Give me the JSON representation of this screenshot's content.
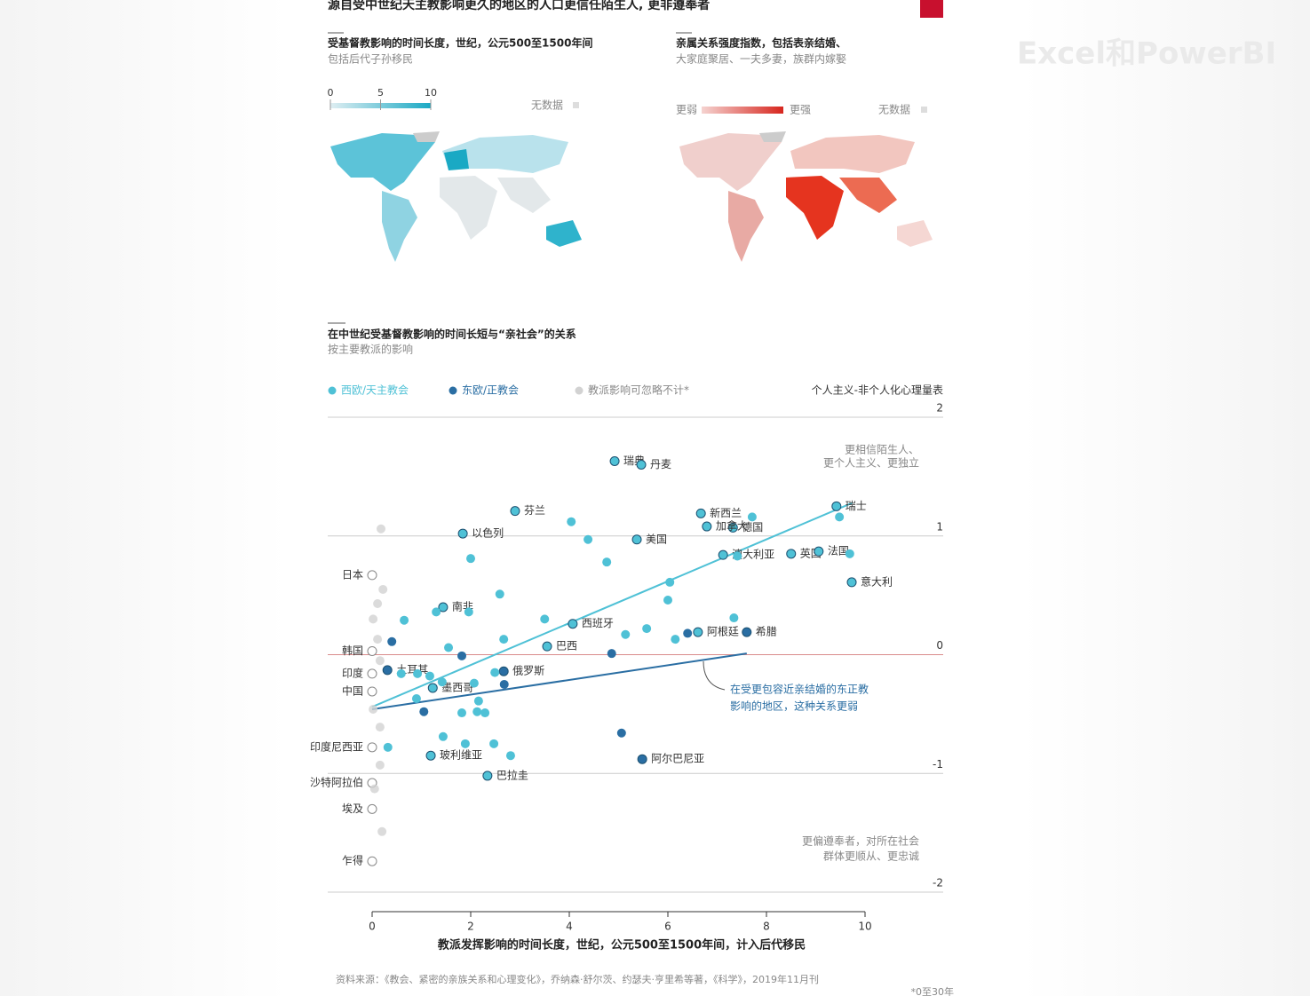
{
  "title": "源自受中世纪天主教影响更久的地区的人口更信任陌生人, 更非遵奉者",
  "watermark": "Excel和PowerBI",
  "map_left": {
    "title": "受基督教影响的时间长度，世纪，公元500至1500年间",
    "subtitle": "包括后代子孙移民",
    "legend_ticks": [
      0,
      5,
      10
    ],
    "no_data": "无数据"
  },
  "map_right": {
    "title_lines": [
      "亲属关系强度指数，包括表亲结婚、",
      "大家庭聚居、一夫多妻，族群内嫁娶"
    ],
    "weaker": "更弱",
    "stronger": "更强",
    "no_data": "无数据"
  },
  "chart_data": {
    "type": "scatter",
    "title": "在中世纪受基督教影响的时间长短与“亲社会”的关系",
    "subtitle": "按主要教派的影响",
    "y_label": "个人主义-非个人化心理量表",
    "x_label": "教派发挥影响的时间长度，世纪，公元500至1500年间，计入后代移民",
    "xlim": [
      0,
      10
    ],
    "xticks": [
      0,
      2,
      4,
      6,
      8,
      10
    ],
    "ylim": [
      -2,
      2
    ],
    "yticks": [
      -2,
      -1,
      0,
      1,
      2
    ],
    "top_note": [
      "更相信陌生人、",
      "更个人主义、更独立"
    ],
    "bottom_note": [
      "更偏遵奉者，对所在社会",
      "群体更顺从、更忠诚"
    ],
    "callout": [
      "在受更包容近亲结婚的东正教",
      "影响的地区，这种关系更弱"
    ],
    "series": [
      {
        "name": "西欧/天主教会",
        "color": "#4fc1d6",
        "x": [
          4.92,
          5.46,
          2.9,
          1.84,
          5.37,
          6.67,
          7.32,
          9.42,
          6.79,
          7.12,
          8.5,
          9.06,
          9.73,
          1.44,
          4.07,
          3.55,
          6.61,
          1.23,
          1.19,
          2.34,
          4.04,
          4.38,
          4.76,
          2.0,
          2.59,
          0.65,
          1.3,
          1.96,
          3.5,
          6.04,
          6.0,
          7.41,
          7.71,
          9.48,
          9.69,
          7.34,
          5.57,
          5.14,
          6.15,
          2.67,
          1.55,
          0.59,
          0.92,
          1.17,
          1.42,
          2.07,
          2.49,
          0.9,
          2.16,
          2.13,
          2.29,
          1.82,
          1.44,
          1.89,
          2.47,
          2.81,
          0.32
        ],
        "values": [
          1.63,
          1.6,
          1.21,
          1.02,
          0.97,
          1.19,
          1.07,
          1.25,
          1.08,
          0.84,
          0.85,
          0.87,
          0.61,
          0.4,
          0.26,
          0.07,
          0.19,
          -0.28,
          -0.85,
          -1.02,
          1.12,
          0.97,
          0.78,
          0.81,
          0.51,
          0.29,
          0.36,
          0.36,
          0.3,
          0.61,
          0.46,
          0.83,
          1.16,
          1.16,
          0.85,
          0.31,
          0.22,
          0.17,
          0.13,
          0.13,
          0.06,
          -0.16,
          -0.16,
          -0.18,
          -0.23,
          -0.24,
          -0.15,
          -0.37,
          -0.39,
          -0.48,
          -0.49,
          -0.49,
          -0.69,
          -0.75,
          -0.75,
          -0.85,
          -0.78
        ],
        "labels": [
          "瑞典",
          "丹麦",
          "芬兰",
          "以色列",
          "美国",
          "新西兰",
          "德国",
          "瑞士",
          "加拿大",
          "澳大利亚",
          "英国",
          "法国",
          "意大利",
          "南非",
          "西班牙",
          "巴西",
          "阿根廷",
          "墨西哥",
          "玻利维亚",
          "巴拉圭",
          null,
          null,
          null,
          null,
          null,
          null,
          null,
          null,
          null,
          null,
          null,
          null,
          null,
          null,
          null,
          null,
          null,
          null,
          null,
          null,
          null,
          null,
          null,
          null,
          null,
          null,
          null,
          null,
          null,
          null,
          null,
          null,
          null,
          null,
          null,
          null,
          null
        ],
        "trend_x": [
          0,
          9.75
        ],
        "trend_y": [
          -0.44,
          1.28
        ]
      },
      {
        "name": "东欧/正教会",
        "color": "#2a6ea3",
        "x": [
          0.31,
          2.67,
          7.6,
          5.48,
          0.4,
          1.82,
          2.68,
          1.05,
          4.86,
          5.06,
          6.4
        ],
        "values": [
          -0.13,
          -0.14,
          0.19,
          -0.88,
          0.11,
          -0.01,
          -0.25,
          -0.48,
          0.01,
          -0.66,
          0.18
        ],
        "labels": [
          "土耳其",
          "俄罗斯",
          "希腊",
          "阿尔巴尼亚",
          null,
          null,
          null,
          null,
          null,
          null,
          null
        ],
        "trend_x": [
          0,
          7.6
        ],
        "trend_y": [
          -0.46,
          0.01
        ]
      },
      {
        "name": "教派影响可忽略不计*",
        "color": "#d2d2d2",
        "x": [
          0,
          0,
          0,
          0,
          0,
          0,
          0,
          0,
          0.18,
          0.22,
          0.11,
          0.02,
          0.11,
          0.16,
          0.02,
          0.16,
          0.16,
          0.05,
          0.2
        ],
        "values": [
          0.67,
          0.03,
          -0.16,
          -0.31,
          -0.78,
          -1.08,
          -1.3,
          -1.74,
          1.06,
          0.55,
          0.43,
          0.3,
          0.13,
          -0.05,
          -0.46,
          -0.61,
          -0.93,
          -1.13,
          -1.49
        ],
        "labels": [
          "日本",
          "韩国",
          "印度",
          "中国",
          "印度尼西亚",
          "沙特阿拉伯",
          "埃及",
          "乍得",
          null,
          null,
          null,
          null,
          null,
          null,
          null,
          null,
          null,
          null,
          null
        ]
      }
    ]
  },
  "source": "资料来源：《教会、紧密的亲族关系和心理变化》，乔纳森·舒尔茨、约瑟夫·亨里希等著，《科学》，2019年11月刊",
  "footnote": "*0至30年"
}
